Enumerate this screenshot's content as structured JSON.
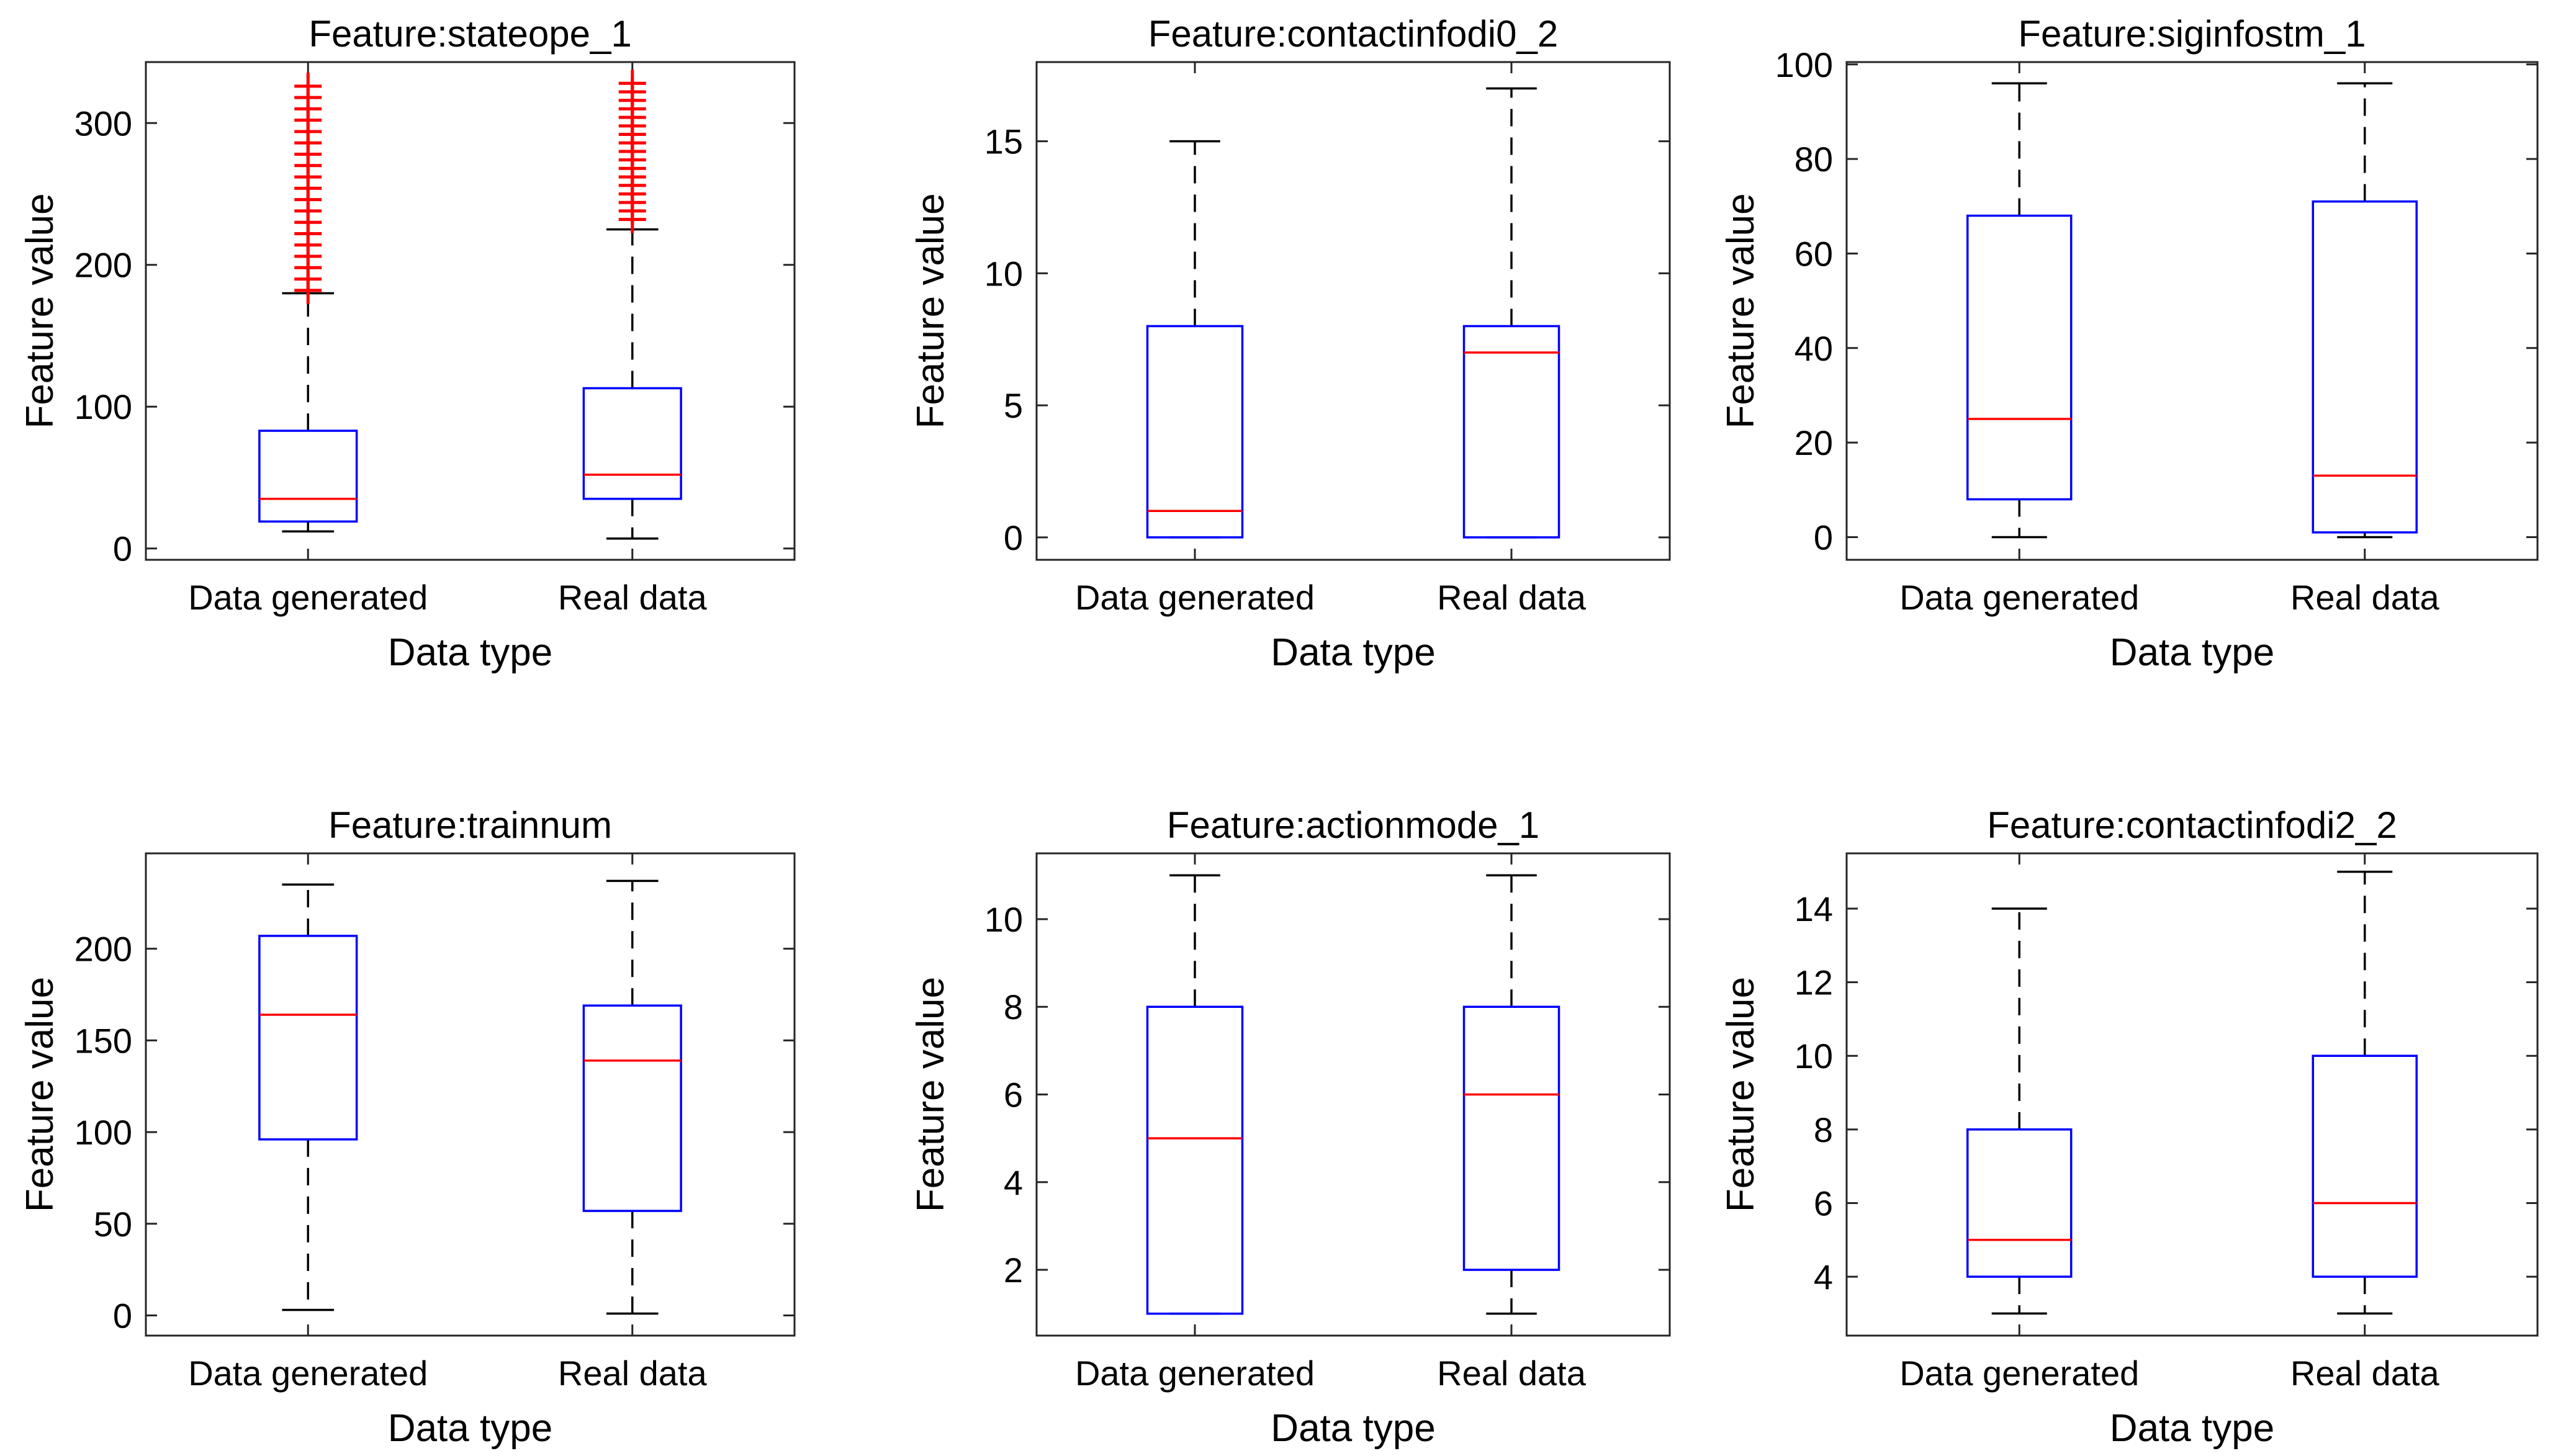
{
  "figure": {
    "colors": {
      "box": "#0000ff",
      "median": "#ff0000",
      "whisker": "#000000",
      "outlier": "#ff0000",
      "axes": "#262626"
    }
  },
  "chart_data": [
    {
      "type": "box",
      "title": "Feature:stateope_1",
      "xlabel": "Data type",
      "ylabel": "Feature value",
      "categories": [
        "Data generated",
        "Real data"
      ],
      "ylim": [
        -8,
        343
      ],
      "yticks": [
        0,
        100,
        200,
        300
      ],
      "boxes": [
        {
          "whisker_low": 12,
          "q1": 19,
          "median": 35,
          "q3": 83,
          "whisker_high": 180,
          "outliers": [
            182,
            190,
            198,
            206,
            214,
            222,
            230,
            238,
            246,
            254,
            262,
            270,
            278,
            286,
            294,
            302,
            310,
            318,
            326
          ]
        },
        {
          "whisker_low": 7,
          "q1": 35,
          "median": 52,
          "q3": 113,
          "whisker_high": 225,
          "outliers": [
            232,
            238,
            244,
            250,
            256,
            262,
            268,
            274,
            280,
            286,
            292,
            298,
            304,
            310,
            316,
            322,
            328
          ]
        }
      ]
    },
    {
      "type": "box",
      "title": "Feature:contactinfodi0_2",
      "xlabel": "Data type",
      "ylabel": "Feature value",
      "categories": [
        "Data generated",
        "Real data"
      ],
      "ylim": [
        -0.85,
        18
      ],
      "yticks": [
        0,
        5,
        10,
        15
      ],
      "boxes": [
        {
          "whisker_low": 0,
          "q1": 0,
          "median": 1,
          "q3": 8,
          "whisker_high": 15,
          "outliers": []
        },
        {
          "whisker_low": 0,
          "q1": 0,
          "median": 7,
          "q3": 8,
          "whisker_high": 17,
          "outliers": []
        }
      ]
    },
    {
      "type": "box",
      "title": "Feature:siginfostm_1",
      "xlabel": "Data type",
      "ylabel": "Feature value",
      "categories": [
        "Data generated",
        "Real data"
      ],
      "ylim": [
        -4.8,
        100.5
      ],
      "yticks": [
        0,
        20,
        40,
        60,
        80,
        100
      ],
      "boxes": [
        {
          "whisker_low": 0,
          "q1": 8,
          "median": 25,
          "q3": 68,
          "whisker_high": 96,
          "outliers": []
        },
        {
          "whisker_low": 0,
          "q1": 1,
          "median": 13,
          "q3": 71,
          "whisker_high": 96,
          "outliers": []
        }
      ]
    },
    {
      "type": "box",
      "title": "Feature:trainnum",
      "xlabel": "Data type",
      "ylabel": "Feature value",
      "categories": [
        "Data generated",
        "Real data"
      ],
      "ylim": [
        -11,
        252
      ],
      "yticks": [
        0,
        50,
        100,
        150,
        200
      ],
      "boxes": [
        {
          "whisker_low": 3,
          "q1": 96,
          "median": 164,
          "q3": 207,
          "whisker_high": 235,
          "outliers": []
        },
        {
          "whisker_low": 1,
          "q1": 57,
          "median": 139,
          "q3": 169,
          "whisker_high": 237,
          "outliers": []
        }
      ]
    },
    {
      "type": "box",
      "title": "Feature:actionmode_1",
      "xlabel": "Data type",
      "ylabel": "Feature value",
      "categories": [
        "Data generated",
        "Real data"
      ],
      "ylim": [
        0.5,
        11.5
      ],
      "yticks": [
        2,
        4,
        6,
        8,
        10
      ],
      "boxes": [
        {
          "whisker_low": 1,
          "q1": 1,
          "median": 5,
          "q3": 8,
          "whisker_high": 11,
          "outliers": []
        },
        {
          "whisker_low": 1,
          "q1": 2,
          "median": 6,
          "q3": 8,
          "whisker_high": 11,
          "outliers": []
        }
      ]
    },
    {
      "type": "box",
      "title": "Feature:contactinfodi2_2",
      "xlabel": "Data type",
      "ylabel": "Feature value",
      "categories": [
        "Data generated",
        "Real data"
      ],
      "ylim": [
        2.4,
        15.5
      ],
      "yticks": [
        4,
        6,
        8,
        10,
        12,
        14
      ],
      "boxes": [
        {
          "whisker_low": 3,
          "q1": 4,
          "median": 5,
          "q3": 8,
          "whisker_high": 14,
          "outliers": []
        },
        {
          "whisker_low": 3,
          "q1": 4,
          "median": 6,
          "q3": 10,
          "whisker_high": 15,
          "outliers": []
        }
      ]
    }
  ]
}
